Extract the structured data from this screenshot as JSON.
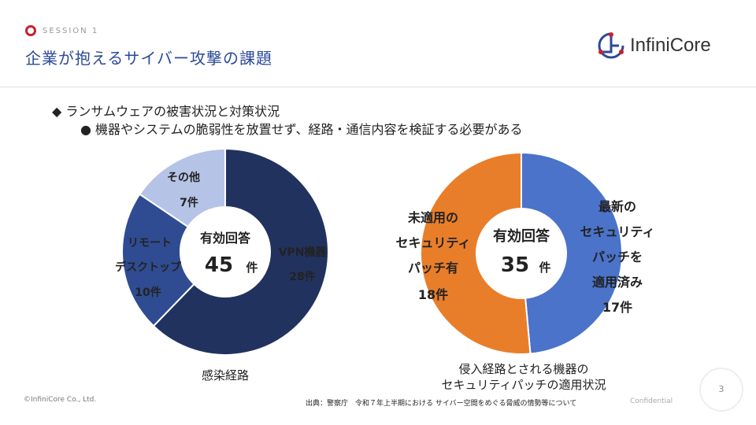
{
  "header": {
    "session": "SESSION 1",
    "title": "企業が抱えるサイバー攻撃の課題",
    "logo_text": "InfiniCore"
  },
  "bullets": {
    "level1": "ランサムウェアの被害状況と対策状況",
    "level2": "機器やシステムの脆弱性を放置せず、経路・通信内容を検証する必要がある"
  },
  "chart_data": [
    {
      "type": "pie",
      "title": "感染経路",
      "center_label": "有効回答",
      "total": "45",
      "total_unit": "件",
      "slices": [
        {
          "label": "VPN機器",
          "value": 28,
          "value_label": "28件",
          "color": "#22325f"
        },
        {
          "label": "リモートデスクトップ",
          "value": 10,
          "value_label": "10件",
          "color": "#2f4c92"
        },
        {
          "label": "その他",
          "value": 7,
          "value_label": "7件",
          "color": "#b5c3e6"
        }
      ]
    },
    {
      "type": "pie",
      "title": "侵入経路とされる機器のセキュリティパッチの適用状況",
      "center_label": "有効回答",
      "total": "35",
      "total_unit": "件",
      "slices": [
        {
          "label": "最新のセキュリティパッチを適用済み",
          "value": 17,
          "value_label": "17件",
          "color": "#4a73c9"
        },
        {
          "label": "未適用のセキュリティパッチ有",
          "value": 18,
          "value_label": "18件",
          "color": "#e87e2a"
        }
      ]
    }
  ],
  "labels": {
    "vpn": "VPN機器",
    "vpn_n": "28件",
    "rd1": "リモート",
    "rd2": "デスクトップ",
    "rd_n": "10件",
    "other": "その他",
    "other_n": "7件",
    "cap1": "感染経路",
    "cap2a": "侵入経路とされる機器の",
    "cap2b": "セキュリティパッチの適用状況",
    "r1": "最新の",
    "r2": "セキュリティ",
    "r3": "パッチを",
    "r4": "適用済み",
    "r_n": "17件",
    "o1": "未適用の",
    "o2": "セキュリティ",
    "o3": "パッチ有",
    "o_n": "18件"
  },
  "footer": {
    "copyright": "©InfiniCore Co., Ltd.",
    "source": "出典：警察庁　令和７年上半期における サイバー空間をめぐる脅威の情勢等について",
    "confidential": "Confidential",
    "page": "3"
  }
}
